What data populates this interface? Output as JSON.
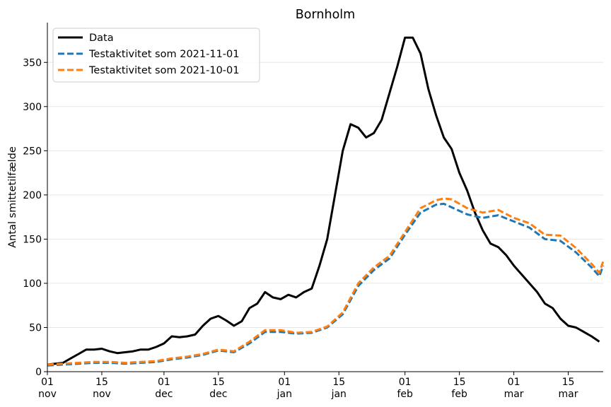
{
  "chart_data": {
    "type": "line",
    "title": "Bornholm",
    "xlabel": "",
    "ylabel": "Antal smittetilfælde",
    "ylim": [
      0,
      395
    ],
    "yticks": [
      0,
      50,
      100,
      150,
      200,
      250,
      300,
      350
    ],
    "xlim": [
      "2021-11-01",
      "2022-03-24"
    ],
    "xticks": [
      {
        "date": "2021-11-01",
        "day": "01",
        "month": "nov"
      },
      {
        "date": "2021-11-15",
        "day": "15",
        "month": "nov"
      },
      {
        "date": "2021-12-01",
        "day": "01",
        "month": "dec"
      },
      {
        "date": "2021-12-15",
        "day": "15",
        "month": "dec"
      },
      {
        "date": "2022-01-01",
        "day": "01",
        "month": "jan"
      },
      {
        "date": "2022-01-15",
        "day": "15",
        "month": "jan"
      },
      {
        "date": "2022-02-01",
        "day": "01",
        "month": "feb"
      },
      {
        "date": "2022-02-15",
        "day": "15",
        "month": "feb"
      },
      {
        "date": "2022-03-01",
        "day": "01",
        "month": "mar"
      },
      {
        "date": "2022-03-15",
        "day": "15",
        "month": "mar"
      }
    ],
    "grid": "horizontal",
    "legend_position": "top-left",
    "series": [
      {
        "name": "Data",
        "color": "#000000",
        "style": "solid",
        "x": [
          "2021-11-01",
          "2021-11-03",
          "2021-11-05",
          "2021-11-07",
          "2021-11-09",
          "2021-11-11",
          "2021-11-13",
          "2021-11-15",
          "2021-11-17",
          "2021-11-19",
          "2021-11-21",
          "2021-11-23",
          "2021-11-25",
          "2021-11-27",
          "2021-11-29",
          "2021-12-01",
          "2021-12-03",
          "2021-12-05",
          "2021-12-07",
          "2021-12-09",
          "2021-12-11",
          "2021-12-13",
          "2021-12-15",
          "2021-12-17",
          "2021-12-19",
          "2021-12-21",
          "2021-12-23",
          "2021-12-25",
          "2021-12-27",
          "2021-12-29",
          "2021-12-31",
          "2022-01-02",
          "2022-01-04",
          "2022-01-06",
          "2022-01-08",
          "2022-01-10",
          "2022-01-12",
          "2022-01-14",
          "2022-01-16",
          "2022-01-18",
          "2022-01-20",
          "2022-01-22",
          "2022-01-24",
          "2022-01-26",
          "2022-01-28",
          "2022-01-30",
          "2022-02-01",
          "2022-02-03",
          "2022-02-05",
          "2022-02-07",
          "2022-02-09",
          "2022-02-11",
          "2022-02-13",
          "2022-02-15",
          "2022-02-17",
          "2022-02-19",
          "2022-02-21",
          "2022-02-23",
          "2022-02-25",
          "2022-02-27",
          "2022-03-01",
          "2022-03-03",
          "2022-03-05",
          "2022-03-07",
          "2022-03-09",
          "2022-03-11",
          "2022-03-13",
          "2022-03-15",
          "2022-03-17",
          "2022-03-19",
          "2022-03-21",
          "2022-03-23"
        ],
        "y": [
          8,
          9,
          10,
          15,
          20,
          25,
          25,
          26,
          23,
          21,
          22,
          23,
          25,
          25,
          28,
          32,
          40,
          39,
          40,
          42,
          52,
          60,
          63,
          58,
          52,
          57,
          72,
          77,
          90,
          84,
          82,
          87,
          84,
          90,
          94,
          120,
          150,
          200,
          250,
          280,
          276,
          265,
          270,
          285,
          315,
          345,
          378,
          378,
          360,
          320,
          290,
          265,
          252,
          225,
          205,
          180,
          160,
          145,
          141,
          132,
          120,
          110,
          100,
          90,
          77,
          72,
          60,
          52,
          50,
          45,
          40,
          34
        ]
      },
      {
        "name": "Testaktivitet som 2021-11-01",
        "color": "#1f77b4",
        "style": "dashed",
        "x": [
          "2021-11-01",
          "2021-11-05",
          "2021-11-09",
          "2021-11-13",
          "2021-11-17",
          "2021-11-21",
          "2021-11-25",
          "2021-11-29",
          "2021-12-03",
          "2021-12-07",
          "2021-12-11",
          "2021-12-15",
          "2021-12-19",
          "2021-12-23",
          "2021-12-27",
          "2021-12-31",
          "2022-01-04",
          "2022-01-08",
          "2022-01-12",
          "2022-01-16",
          "2022-01-20",
          "2022-01-24",
          "2022-01-28",
          "2022-02-01",
          "2022-02-05",
          "2022-02-09",
          "2022-02-11",
          "2022-02-13",
          "2022-02-17",
          "2022-02-21",
          "2022-02-25",
          "2022-03-01",
          "2022-03-05",
          "2022-03-09",
          "2022-03-13",
          "2022-03-17",
          "2022-03-21",
          "2022-03-23",
          "2022-03-24"
        ],
        "y": [
          7,
          8,
          9,
          10,
          10,
          9,
          10,
          11,
          14,
          16,
          19,
          24,
          22,
          32,
          45,
          45,
          43,
          44,
          50,
          65,
          97,
          115,
          128,
          155,
          180,
          189,
          190,
          186,
          178,
          174,
          177,
          170,
          163,
          150,
          148,
          135,
          118,
          108,
          120
        ]
      },
      {
        "name": "Testaktivitet som 2021-10-01",
        "color": "#ff7f0e",
        "style": "dashed",
        "x": [
          "2021-11-01",
          "2021-11-05",
          "2021-11-09",
          "2021-11-13",
          "2021-11-17",
          "2021-11-21",
          "2021-11-25",
          "2021-11-29",
          "2021-12-03",
          "2021-12-07",
          "2021-12-11",
          "2021-12-15",
          "2021-12-19",
          "2021-12-23",
          "2021-12-27",
          "2021-12-31",
          "2022-01-04",
          "2022-01-08",
          "2022-01-12",
          "2022-01-16",
          "2022-01-20",
          "2022-01-24",
          "2022-01-28",
          "2022-02-01",
          "2022-02-05",
          "2022-02-09",
          "2022-02-11",
          "2022-02-13",
          "2022-02-17",
          "2022-02-21",
          "2022-02-25",
          "2022-03-01",
          "2022-03-05",
          "2022-03-09",
          "2022-03-13",
          "2022-03-17",
          "2022-03-21",
          "2022-03-23",
          "2022-03-24"
        ],
        "y": [
          8,
          9,
          10,
          11,
          11,
          10,
          11,
          12,
          15,
          17,
          20,
          25,
          23,
          34,
          47,
          47,
          44,
          45,
          51,
          67,
          100,
          118,
          131,
          158,
          185,
          194,
          196,
          195,
          185,
          180,
          183,
          174,
          168,
          155,
          154,
          140,
          122,
          112,
          125
        ]
      }
    ]
  }
}
